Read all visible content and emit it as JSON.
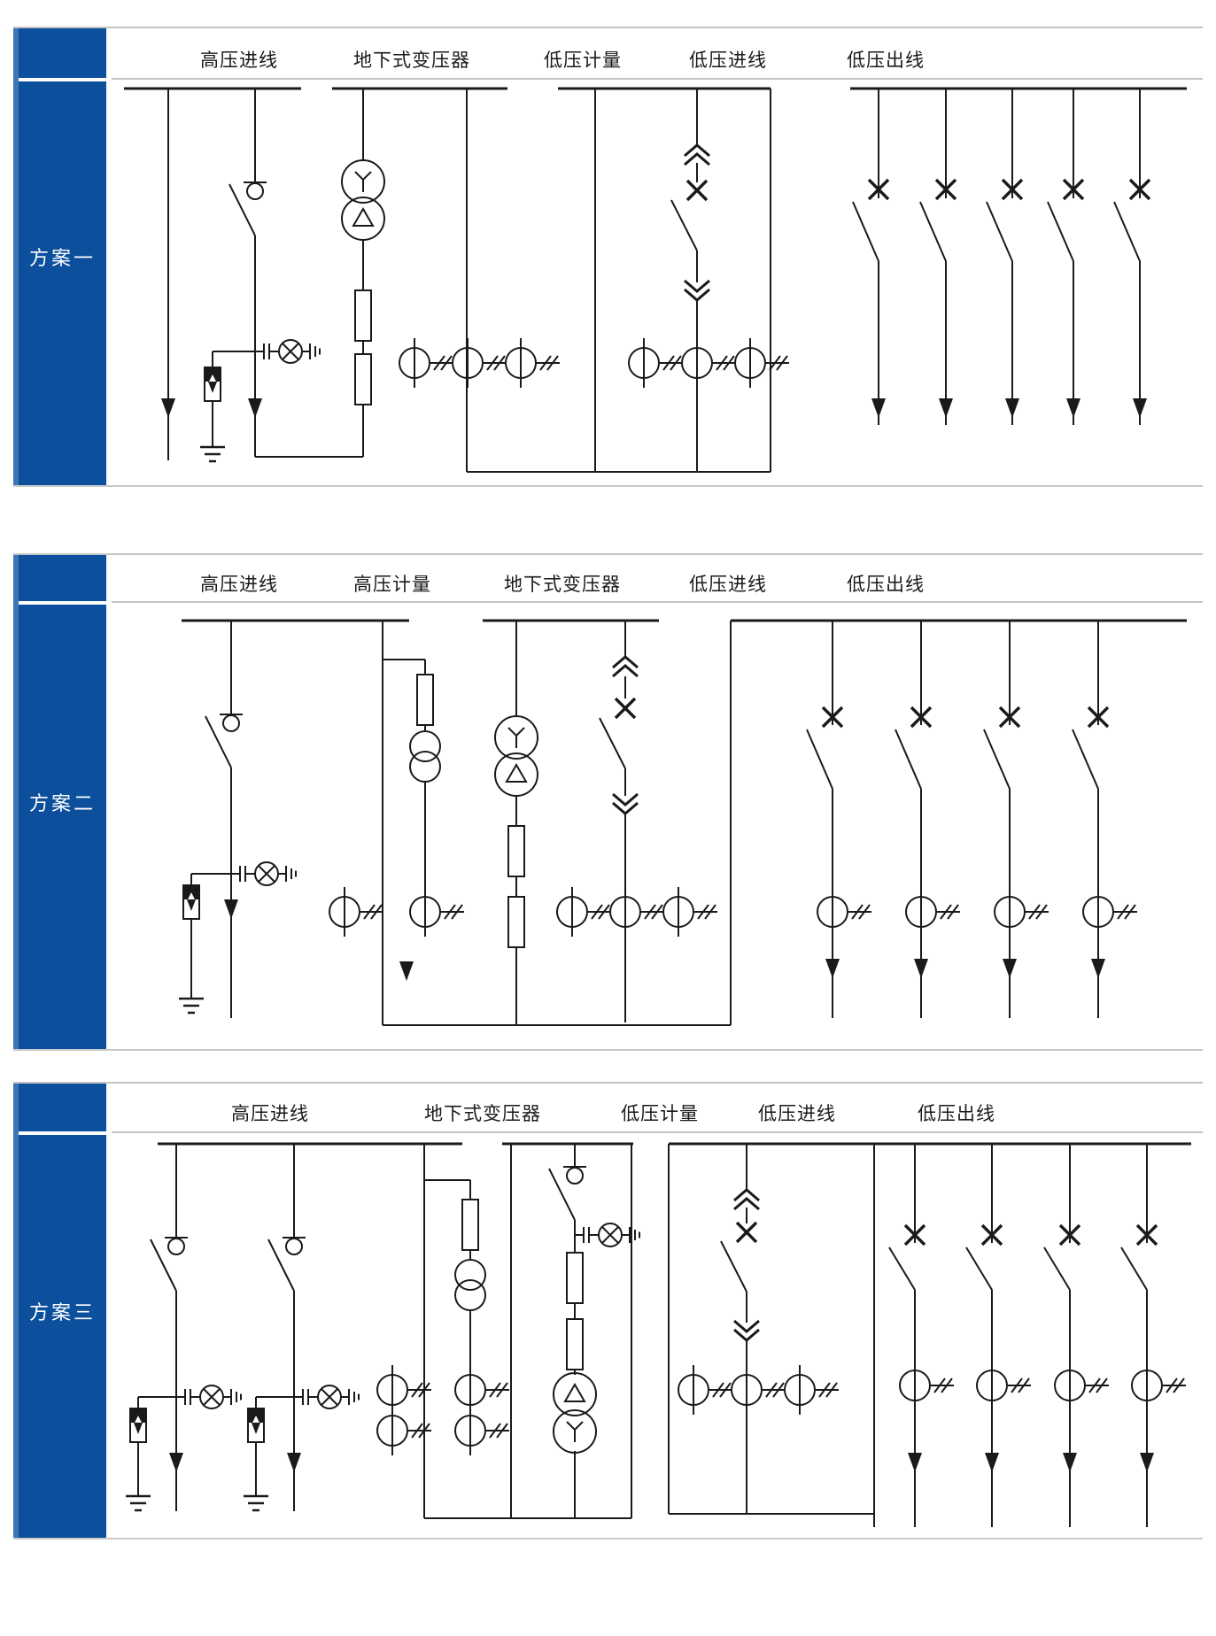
{
  "panels": [
    {
      "label": "方案一",
      "columns": [
        "高压进线",
        "地下式变压器",
        "低压计量",
        "低压进线",
        "低压出线"
      ]
    },
    {
      "label": "方案二",
      "columns": [
        "高压进线",
        "高压计量",
        "地下式变压器",
        "低压进线",
        "低压出线"
      ]
    },
    {
      "label": "方案三",
      "columns": [
        "高压进线",
        "地下式变压器",
        "低压计量",
        "低压进线",
        "低压出线"
      ]
    }
  ],
  "colors": {
    "sidebar_blue": "#0B4F9D",
    "sidebar_edge_blue": "#3C76B4",
    "divider_gray": "#C4C4C4",
    "line_black": "#1A1A1A",
    "background": "#FFFFFF"
  },
  "symbols": [
    "disconnector-switch-icon",
    "circuit-breaker-x-icon",
    "drawout-chevron-icon",
    "current-transformer-icon",
    "voltage-transformer-icon",
    "transformer-y-delta-icon",
    "transformer-delta-y-icon",
    "fuse-icon",
    "surge-arrester-icon",
    "indicator-lamp-icon",
    "earth-ground-icon",
    "flow-arrow-icon"
  ]
}
